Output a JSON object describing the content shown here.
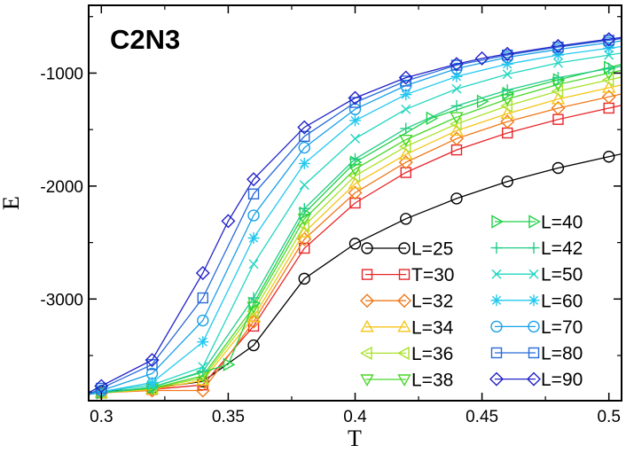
{
  "chart_data": {
    "type": "line",
    "title": "C2N3",
    "xlabel": "T",
    "ylabel": "E",
    "xlim": [
      0.295,
      0.505
    ],
    "ylim": [
      -3900,
      -400
    ],
    "xticks": [
      0.3,
      0.35,
      0.4,
      0.45,
      0.5
    ],
    "xtick_labels": [
      "0.3",
      "0.35",
      "0.4",
      "0.45",
      "0.5"
    ],
    "yticks": [
      -1000,
      -2000,
      -3000
    ],
    "ytick_labels": [
      "-1000",
      "-2000",
      "-3000"
    ],
    "grid": false,
    "legend_position": "bottom-right",
    "series": [
      {
        "name": "L=25",
        "color": "#000000",
        "marker": "circle",
        "x": [
          0.3,
          0.32,
          0.34,
          0.36,
          0.38,
          0.4,
          0.42,
          0.44,
          0.46,
          0.48,
          0.5
        ],
        "y": [
          -3820,
          -3790,
          -3730,
          -3410,
          -2820,
          -2510,
          -2290,
          -2110,
          -1960,
          -1840,
          -1740
        ]
      },
      {
        "name": "T=30",
        "color": "#e8262a",
        "marker": "square",
        "x": [
          0.3,
          0.32,
          0.34,
          0.36,
          0.38,
          0.4,
          0.42,
          0.44,
          0.46,
          0.48,
          0.5
        ],
        "y": [
          -3830,
          -3800,
          -3760,
          -3240,
          -2550,
          -2150,
          -1880,
          -1680,
          -1530,
          -1410,
          -1310
        ]
      },
      {
        "name": "L=32",
        "color": "#f07818",
        "marker": "diamond",
        "x": [
          0.3,
          0.32,
          0.34,
          0.36,
          0.38,
          0.4,
          0.42,
          0.44,
          0.46,
          0.48,
          0.5
        ],
        "y": [
          -3830,
          -3810,
          -3810,
          -3200,
          -2470,
          -2060,
          -1790,
          -1580,
          -1430,
          -1310,
          -1210
        ]
      },
      {
        "name": "L=34",
        "color": "#f5c518",
        "marker": "triangle-up",
        "x": [
          0.3,
          0.32,
          0.34,
          0.36,
          0.38,
          0.4,
          0.42,
          0.44,
          0.46,
          0.48,
          0.5
        ],
        "y": [
          -3830,
          -3800,
          -3720,
          -3160,
          -2410,
          -1980,
          -1720,
          -1510,
          -1360,
          -1230,
          -1130
        ]
      },
      {
        "name": "L=36",
        "color": "#a8e22a",
        "marker": "triangle-left",
        "x": [
          0.3,
          0.32,
          0.34,
          0.36,
          0.38,
          0.4,
          0.42,
          0.44,
          0.46,
          0.48,
          0.5
        ],
        "y": [
          -3830,
          -3790,
          -3700,
          -3110,
          -2350,
          -1910,
          -1650,
          -1450,
          -1290,
          -1160,
          -1060
        ]
      },
      {
        "name": "L=38",
        "color": "#48d72a",
        "marker": "triangle-down",
        "x": [
          0.3,
          0.32,
          0.34,
          0.36,
          0.38,
          0.4,
          0.42,
          0.44,
          0.46,
          0.48,
          0.5
        ],
        "y": [
          -3830,
          -3790,
          -3680,
          -3070,
          -2290,
          -1850,
          -1590,
          -1390,
          -1230,
          -1100,
          -1000
        ]
      },
      {
        "name": "L=40",
        "color": "#22d04a",
        "marker": "triangle-right",
        "x": [
          0.3,
          0.32,
          0.35,
          0.36,
          0.38,
          0.4,
          0.43,
          0.45,
          0.46,
          0.48,
          0.5
        ],
        "y": [
          -3830,
          -3780,
          -3580,
          -3040,
          -2240,
          -1790,
          -1400,
          -1250,
          -1180,
          -1060,
          -950
        ]
      },
      {
        "name": "L=42",
        "color": "#22cc88",
        "marker": "plus",
        "x": [
          0.3,
          0.32,
          0.34,
          0.36,
          0.38,
          0.4,
          0.42,
          0.44,
          0.46,
          0.48,
          0.5
        ],
        "y": [
          -3830,
          -3780,
          -3640,
          -2990,
          -2200,
          -1760,
          -1490,
          -1290,
          -1150,
          -1040,
          -960
        ]
      },
      {
        "name": "L=50",
        "color": "#22d6c0",
        "marker": "cross",
        "x": [
          0.3,
          0.32,
          0.34,
          0.36,
          0.38,
          0.4,
          0.42,
          0.44,
          0.46,
          0.48,
          0.5
        ],
        "y": [
          -3820,
          -3760,
          -3600,
          -2690,
          -1990,
          -1580,
          -1320,
          -1140,
          -1010,
          -910,
          -840
        ]
      },
      {
        "name": "L=60",
        "color": "#22c8f0",
        "marker": "asterisk",
        "x": [
          0.3,
          0.32,
          0.34,
          0.36,
          0.38,
          0.4,
          0.42,
          0.44,
          0.46,
          0.48,
          0.5
        ],
        "y": [
          -3820,
          -3740,
          -3380,
          -2460,
          -1800,
          -1420,
          -1190,
          -1030,
          -920,
          -840,
          -780
        ]
      },
      {
        "name": "L=70",
        "color": "#1aa0e8",
        "marker": "circle",
        "x": [
          0.3,
          0.32,
          0.34,
          0.36,
          0.38,
          0.4,
          0.42,
          0.44,
          0.46,
          0.48,
          0.5
        ],
        "y": [
          -3810,
          -3660,
          -3190,
          -2260,
          -1660,
          -1320,
          -1110,
          -960,
          -860,
          -790,
          -730
        ]
      },
      {
        "name": "L=80",
        "color": "#2a6ad8",
        "marker": "square",
        "x": [
          0.3,
          0.32,
          0.34,
          0.36,
          0.38,
          0.4,
          0.42,
          0.44,
          0.46,
          0.48,
          0.5
        ],
        "y": [
          -3790,
          -3580,
          -2990,
          -2070,
          -1560,
          -1260,
          -1070,
          -930,
          -840,
          -770,
          -710
        ]
      },
      {
        "name": "L=90",
        "color": "#2222c8",
        "marker": "diamond",
        "x": [
          0.3,
          0.32,
          0.34,
          0.35,
          0.36,
          0.38,
          0.4,
          0.42,
          0.44,
          0.45,
          0.46,
          0.48,
          0.5
        ],
        "y": [
          -3770,
          -3540,
          -2770,
          -2310,
          -1940,
          -1480,
          -1220,
          -1040,
          -920,
          -870,
          -830,
          -760,
          -700
        ]
      }
    ]
  }
}
